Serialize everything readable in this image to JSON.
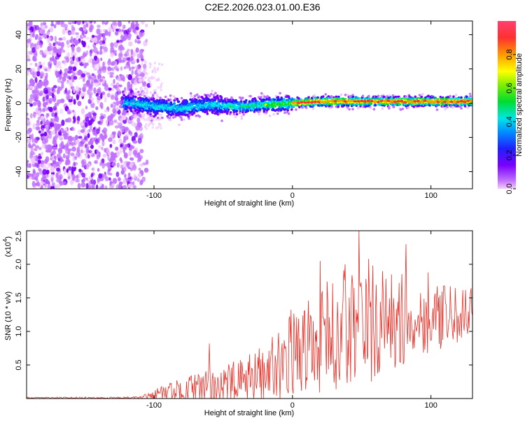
{
  "title": "C2E2.2026.023.01.00.E36",
  "chart_data": [
    {
      "type": "heatmap",
      "xlabel": "Height of straight line (km)",
      "ylabel": "Frequency (Hz)",
      "xlim": [
        -192,
        130
      ],
      "ylim": [
        -50,
        48
      ],
      "xticks": [
        -100,
        0,
        100
      ],
      "yticks": [
        40,
        20,
        0,
        -20,
        -40
      ],
      "colorbar": {
        "label": "Normalized spectral amplitude",
        "range": [
          0,
          1
        ],
        "ticks": [
          0.0,
          0.2,
          0.4,
          0.6,
          0.8
        ]
      },
      "ridge": [
        {
          "x": -115,
          "y": 0
        },
        {
          "x": -100,
          "y": -2
        },
        {
          "x": -80,
          "y": -3
        },
        {
          "x": -60,
          "y": -1
        },
        {
          "x": -40,
          "y": -2
        },
        {
          "x": -20,
          "y": -1
        },
        {
          "x": 0,
          "y": 0
        },
        {
          "x": 20,
          "y": 1
        },
        {
          "x": 60,
          "y": 1
        },
        {
          "x": 100,
          "y": 1
        },
        {
          "x": 130,
          "y": 1
        }
      ],
      "noise_region": {
        "x_from": -192,
        "x_to": -108
      }
    },
    {
      "type": "line",
      "xlabel": "Height of straight line (km)",
      "ylabel": "SNR (10 * v/v)",
      "scale_note": "(x10",
      "scale_exp": "4",
      "xlim": [
        -192,
        130
      ],
      "ylim": [
        0,
        2.5
      ],
      "xticks": [
        -100,
        0,
        100
      ],
      "yticks": [
        0.5,
        1.0,
        1.5,
        2.0,
        2.5
      ],
      "ytick_labels": [
        "0.5",
        "1.0",
        "1.5",
        "2.0",
        "2.5"
      ],
      "series": [
        {
          "name": "SNR",
          "color": "#e8322a",
          "envelope": [
            {
              "x": -192,
              "base": 0.01,
              "amp": 0.01
            },
            {
              "x": -110,
              "base": 0.01,
              "amp": 0.02
            },
            {
              "x": -95,
              "base": 0.07,
              "amp": 0.12
            },
            {
              "x": -75,
              "base": 0.12,
              "amp": 0.22
            },
            {
              "x": -55,
              "base": 0.18,
              "amp": 0.3
            },
            {
              "x": -35,
              "base": 0.25,
              "amp": 0.35
            },
            {
              "x": -15,
              "base": 0.45,
              "amp": 0.5
            },
            {
              "x": 0,
              "base": 0.7,
              "amp": 0.65
            },
            {
              "x": 20,
              "base": 0.85,
              "amp": 0.8
            },
            {
              "x": 40,
              "base": 1.05,
              "amp": 1.0
            },
            {
              "x": 60,
              "base": 1.1,
              "amp": 0.9
            },
            {
              "x": 80,
              "base": 1.15,
              "amp": 0.7
            },
            {
              "x": 100,
              "base": 1.2,
              "amp": 0.5
            },
            {
              "x": 130,
              "base": 1.25,
              "amp": 0.4
            }
          ],
          "peaks": [
            {
              "x": -60,
              "y": 0.82
            },
            {
              "x": 20,
              "y": 2.05
            },
            {
              "x": 38,
              "y": 2.0
            },
            {
              "x": 48,
              "y": 2.5
            },
            {
              "x": 55,
              "y": 2.08
            },
            {
              "x": 82,
              "y": 2.3
            },
            {
              "x": 98,
              "y": 1.88
            },
            {
              "x": 125,
              "y": 1.62
            }
          ]
        }
      ]
    }
  ]
}
